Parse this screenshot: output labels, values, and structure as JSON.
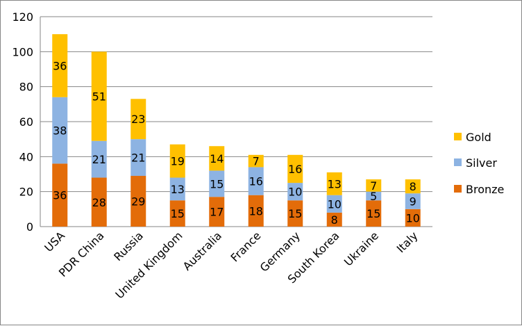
{
  "chart_data": {
    "type": "bar",
    "stacked": true,
    "categories": [
      "USA",
      "PDR China",
      "Russia",
      "United Kingdom",
      "Australia",
      "France",
      "Germany",
      "South Korea",
      "Ukraine",
      "Italy"
    ],
    "series": [
      {
        "name": "Bronze",
        "color": "#E36C09",
        "values": [
          36,
          28,
          29,
          15,
          17,
          18,
          15,
          8,
          15,
          10
        ]
      },
      {
        "name": "Silver",
        "color": "#8DB3E2",
        "values": [
          38,
          21,
          21,
          13,
          15,
          16,
          10,
          10,
          5,
          9
        ]
      },
      {
        "name": "Gold",
        "color": "#FFC000",
        "values": [
          36,
          51,
          23,
          19,
          14,
          7,
          16,
          13,
          7,
          8
        ]
      }
    ],
    "ylim": [
      0,
      120
    ],
    "yticks": [
      "0",
      "20",
      "40",
      "60",
      "80",
      "100",
      "120"
    ],
    "grid": true,
    "legend": "right",
    "legend_order": [
      "Gold",
      "Silver",
      "Bronze"
    ]
  }
}
